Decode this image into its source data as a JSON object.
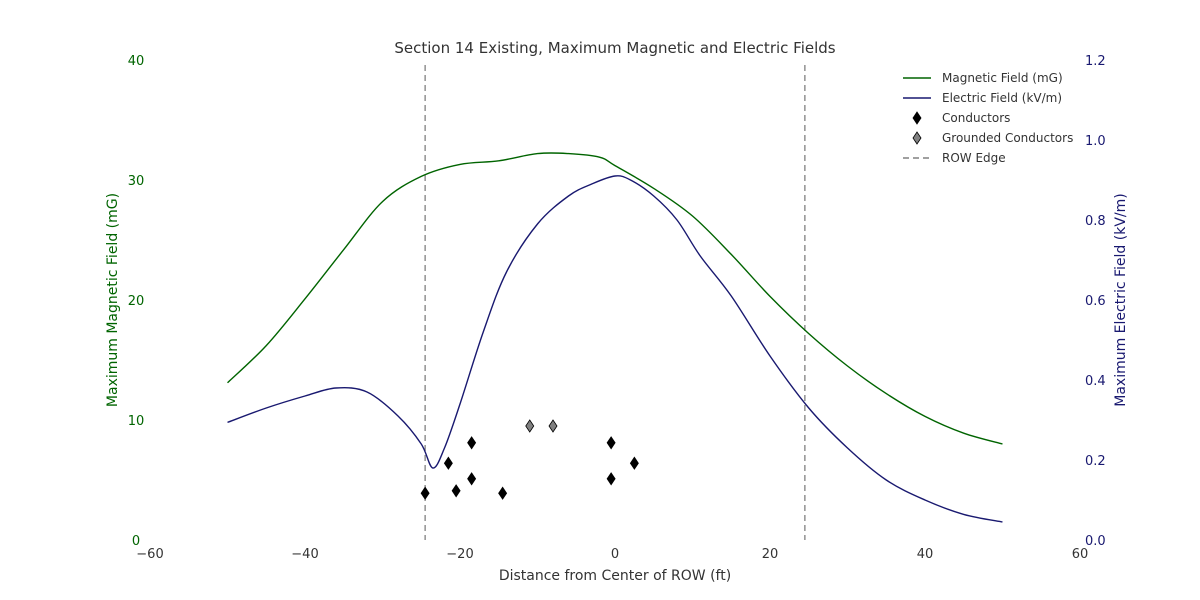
{
  "chart_data": {
    "type": "line",
    "title": "Section 14 Existing, Maximum Magnetic and Electric Fields",
    "xlabel": "Distance from Center of ROW (ft)",
    "ylabel_left": "Maximum Magnetic Field (mG)",
    "ylabel_right": "Maximum Electric Field (kV/m)",
    "xlim": [
      -60,
      60
    ],
    "ylim_left": [
      0,
      40
    ],
    "ylim_right": [
      0.0,
      1.2
    ],
    "xticks": [
      "−60",
      "−40",
      "−20",
      "0",
      "20",
      "40",
      "60"
    ],
    "xtick_values": [
      -60,
      -40,
      -20,
      0,
      20,
      40,
      60
    ],
    "yticks_left": [
      "0",
      "10",
      "20",
      "30",
      "40"
    ],
    "ytick_values_left": [
      0,
      10,
      20,
      30,
      40
    ],
    "yticks_right": [
      "0.0",
      "0.2",
      "0.4",
      "0.6",
      "0.8",
      "1.0",
      "1.2"
    ],
    "ytick_values_right": [
      0.0,
      0.2,
      0.4,
      0.6,
      0.8,
      1.0,
      1.2
    ],
    "grid": false,
    "legend_position": "top-right",
    "colors": {
      "magnetic": "#006400",
      "electric": "#191970",
      "conductor": "#000000",
      "grounded": "#808080",
      "row_edge": "#808080",
      "text": "#333333"
    },
    "series": [
      {
        "name": "Magnetic Field (mG)",
        "axis": "left",
        "x": [
          -50,
          -45,
          -40,
          -35,
          -30,
          -25,
          -20,
          -15,
          -10,
          -6,
          -2,
          0,
          5,
          10,
          15,
          20,
          25,
          30,
          35,
          40,
          45,
          50
        ],
        "y": [
          13.1,
          16.2,
          20.1,
          24.2,
          28.2,
          30.3,
          31.3,
          31.6,
          32.2,
          32.2,
          31.9,
          31.2,
          29.3,
          27.0,
          23.8,
          20.3,
          17.2,
          14.5,
          12.2,
          10.3,
          8.9,
          8.0
        ]
      },
      {
        "name": "Electric Field (kV/m)",
        "axis": "right",
        "x": [
          -50,
          -45,
          -40,
          -36,
          -32,
          -28,
          -25,
          -23.5,
          -22,
          -20,
          -17,
          -14,
          -10,
          -6,
          -3,
          0,
          2,
          5,
          8,
          11,
          15,
          20,
          25,
          30,
          35,
          40,
          45,
          50
        ],
        "y": [
          0.294,
          0.33,
          0.36,
          0.38,
          0.37,
          0.31,
          0.24,
          0.18,
          0.23,
          0.34,
          0.52,
          0.67,
          0.79,
          0.86,
          0.89,
          0.91,
          0.9,
          0.86,
          0.8,
          0.71,
          0.61,
          0.46,
          0.33,
          0.23,
          0.15,
          0.1,
          0.064,
          0.045
        ]
      }
    ],
    "markers": [
      {
        "name": "Conductors",
        "axis": "left",
        "x": [
          -24.5,
          -21.5,
          -20.5,
          -18.5,
          -18.5,
          -14.5,
          -0.5,
          -0.5,
          2.5
        ],
        "y": [
          3.9,
          6.4,
          4.1,
          8.1,
          5.1,
          3.9,
          8.1,
          5.1,
          6.4
        ]
      },
      {
        "name": "Grounded Conductors",
        "axis": "left",
        "x": [
          -11,
          -8
        ],
        "y": [
          9.5,
          9.5
        ]
      }
    ],
    "row_edges": {
      "name": "ROW Edge",
      "x": [
        -24.5,
        24.5
      ]
    }
  }
}
